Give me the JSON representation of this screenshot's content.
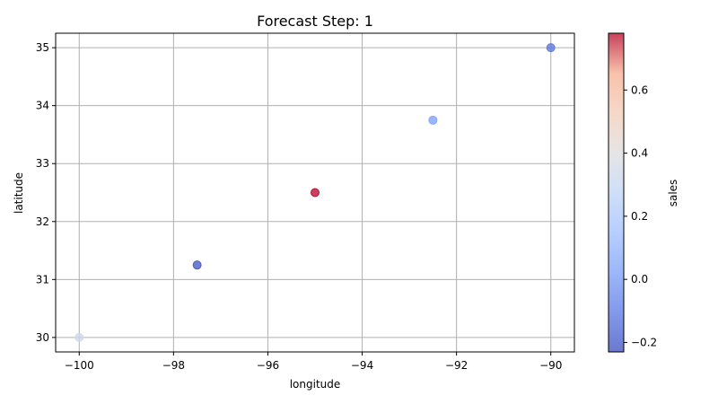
{
  "chart_data": {
    "type": "scatter",
    "title": "Forecast Step: 1",
    "xlabel": "longitude",
    "ylabel": "latitude",
    "xlim": [
      -100.5,
      -89.5
    ],
    "ylim": [
      29.75,
      35.25
    ],
    "xticks": [
      -100,
      -98,
      -96,
      -94,
      -92,
      -90
    ],
    "yticks": [
      30,
      31,
      32,
      33,
      34,
      35
    ],
    "grid": true,
    "points": [
      {
        "x": -100.0,
        "y": 30.0,
        "value": 0.33
      },
      {
        "x": -97.5,
        "y": 31.25,
        "value": -0.21
      },
      {
        "x": -95.0,
        "y": 32.5,
        "value": 0.78
      },
      {
        "x": -92.5,
        "y": 33.75,
        "value": 0.02
      },
      {
        "x": -90.0,
        "y": 35.0,
        "value": -0.12
      }
    ],
    "colorbar": {
      "label": "sales",
      "range": [
        -0.23,
        0.78
      ],
      "ticks": [
        -0.2,
        0.0,
        0.2,
        0.4,
        0.6
      ],
      "tick_labels": [
        "−0.2",
        "0.0",
        "0.2",
        "0.4",
        "0.6"
      ],
      "colormap": "coolwarm"
    }
  }
}
